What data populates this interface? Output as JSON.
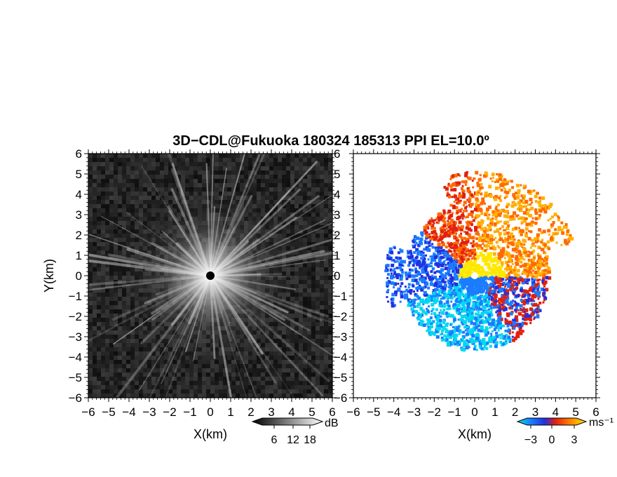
{
  "title": "3D−CDL@Fukuoka 180324 185313 PPI EL=10.0º",
  "chart_data": [
    {
      "type": "heatmap",
      "panel": "left",
      "xlabel": "X(km)",
      "ylabel": "Y(km)",
      "xlim": [
        -6,
        6
      ],
      "ylim": [
        -6,
        6
      ],
      "xticks": [
        "−6",
        "−5",
        "−4",
        "−3",
        "−2",
        "−1",
        "0",
        "1",
        "2",
        "3",
        "4",
        "5",
        "6"
      ],
      "yticks": [
        "−6",
        "−5",
        "−4",
        "−3",
        "−2",
        "−1",
        "0",
        "1",
        "2",
        "3",
        "4",
        "5",
        "6"
      ],
      "colorbar": {
        "unit": "dB",
        "ticks": [
          "6",
          "12",
          "18"
        ],
        "colormap": "grayscale"
      }
    },
    {
      "type": "heatmap",
      "panel": "right",
      "xlabel": "X(km)",
      "xlim": [
        -6,
        6
      ],
      "ylim": [
        -6,
        6
      ],
      "xticks": [
        "−6",
        "−5",
        "−4",
        "−3",
        "−2",
        "−1",
        "0",
        "1",
        "2",
        "3",
        "4",
        "5",
        "6"
      ],
      "yticks": [
        "−6",
        "−5",
        "−4",
        "−3",
        "−2",
        "−1",
        "0",
        "1",
        "2",
        "3",
        "4",
        "5",
        "6"
      ],
      "colorbar": {
        "unit": "ms⁻¹",
        "ticks": [
          "−3",
          "0",
          "3"
        ],
        "colormap": "cyan-blue-red-orange-yellow"
      }
    }
  ],
  "colors": {
    "velocity": [
      "#00d8f0",
      "#1a7cff",
      "#2030e0",
      "#e02010",
      "#ff6a00",
      "#ffb000",
      "#ffe800"
    ]
  }
}
